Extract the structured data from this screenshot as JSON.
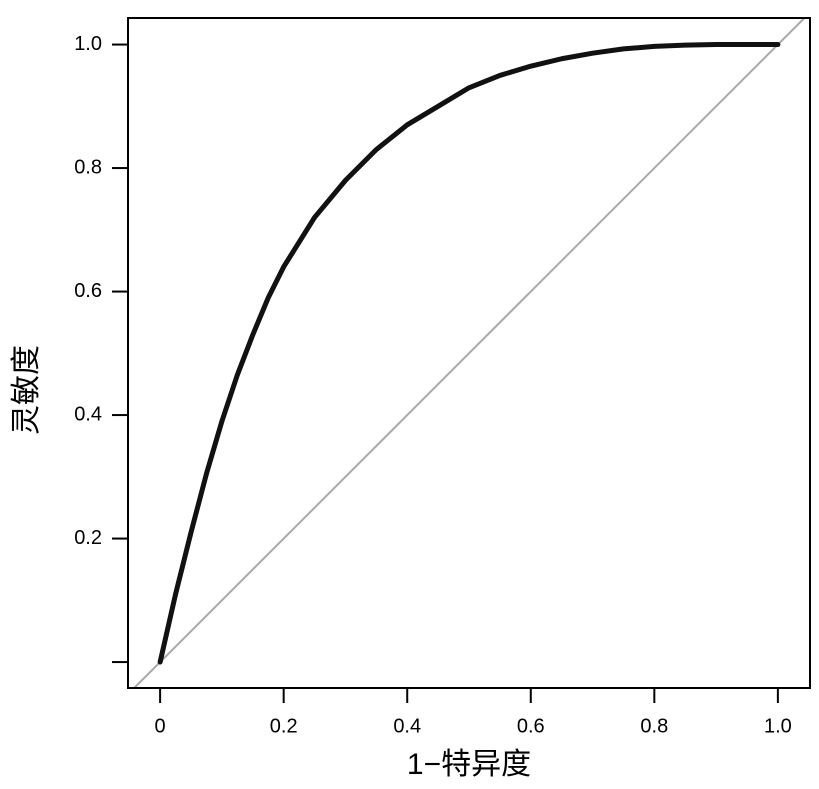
{
  "chart_data": {
    "type": "line",
    "xlabel": "1−特异度",
    "ylabel": "灵敏度",
    "x": [
      0,
      0.025,
      0.05,
      0.075,
      0.1,
      0.125,
      0.15,
      0.175,
      0.2,
      0.25,
      0.3,
      0.35,
      0.4,
      0.45,
      0.5,
      0.55,
      0.6,
      0.65,
      0.7,
      0.75,
      0.8,
      0.85,
      0.9,
      0.95,
      1.0
    ],
    "series": [
      {
        "color": "#111111",
        "values": [
          0,
          0.11,
          0.21,
          0.305,
          0.39,
          0.465,
          0.53,
          0.59,
          0.64,
          0.72,
          0.78,
          0.83,
          0.87,
          0.9,
          0.93,
          0.95,
          0.965,
          0.977,
          0.986,
          0.993,
          0.997,
          0.999,
          1.0,
          1.0,
          1.0
        ]
      }
    ],
    "reference_line_color": "#aaaaaa",
    "xlim": [
      -0.052,
      1.052
    ],
    "ylim": [
      -0.042,
      1.043
    ],
    "xticks": [
      0,
      0.2,
      0.4,
      0.6,
      0.8,
      {
        "value": 1,
        "label": "1.0"
      }
    ],
    "yticks": [
      {
        "value": 0,
        "label": null
      },
      0.2,
      0.4,
      0.6,
      0.8,
      {
        "value": 1,
        "label": "1.0"
      }
    ]
  }
}
